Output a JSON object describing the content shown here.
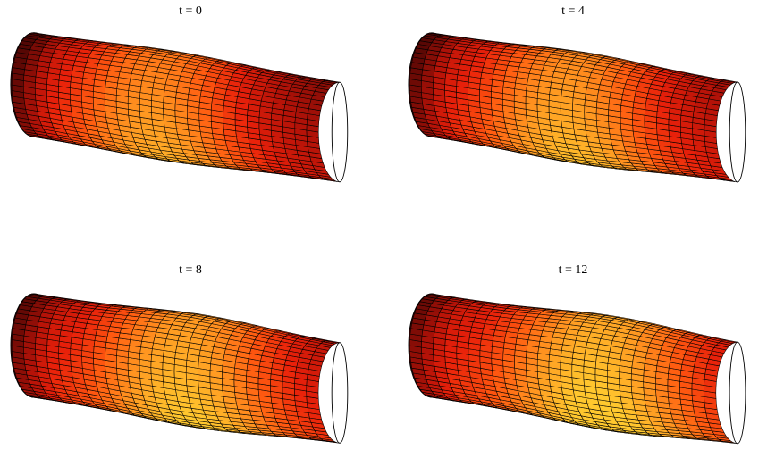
{
  "figure": {
    "panels": [
      {
        "title": "t = 0",
        "time": 0
      },
      {
        "title": "t = 4",
        "time": 4
      },
      {
        "title": "t = 8",
        "time": 8
      },
      {
        "title": "t = 12",
        "time": 12
      }
    ],
    "colormap": "hot",
    "colormap_stops": [
      "#3a0303",
      "#6e0a05",
      "#b31208",
      "#e8200a",
      "#ff5a10",
      "#ff9520",
      "#ffc82e"
    ],
    "edge_color": "#000000",
    "surface": "deformed tube with a bulge travelling along its axis"
  }
}
